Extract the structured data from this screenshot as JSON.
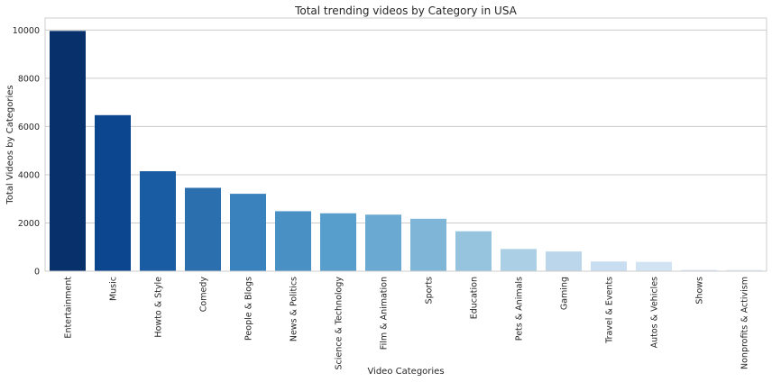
{
  "chart_data": {
    "type": "bar",
    "title": "Total trending videos by Category in USA",
    "xlabel": "Video Categories",
    "ylabel": "Total Videos by Categories",
    "categories": [
      "Entertainment",
      "Music",
      "Howto & Style",
      "Comedy",
      "People & Blogs",
      "News & Politics",
      "Science & Technology",
      "Film & Animation",
      "Sports",
      "Education",
      "Pets & Animals",
      "Gaming",
      "Travel & Events",
      "Autos & Vehicles",
      "Shows",
      "Nonprofits & Activism"
    ],
    "values": [
      9964,
      6472,
      4146,
      3457,
      3210,
      2487,
      2401,
      2345,
      2174,
      1656,
      920,
      817,
      402,
      384,
      57,
      57
    ],
    "ylim": [
      0,
      10500
    ],
    "yticks": [
      0,
      2000,
      4000,
      6000,
      8000,
      10000
    ],
    "grid": true,
    "legend": "none",
    "colors": [
      "#08306b",
      "#0c468e",
      "#1a5ca3",
      "#2b6fae",
      "#3a82bd",
      "#4991c4",
      "#579ecd",
      "#69a9d2",
      "#7fb6d8",
      "#96c3de",
      "#abcfe5",
      "#bbd6eb",
      "#c8ddf0",
      "#d2e3f3",
      "#dce9f6",
      "#e4eef8"
    ]
  }
}
